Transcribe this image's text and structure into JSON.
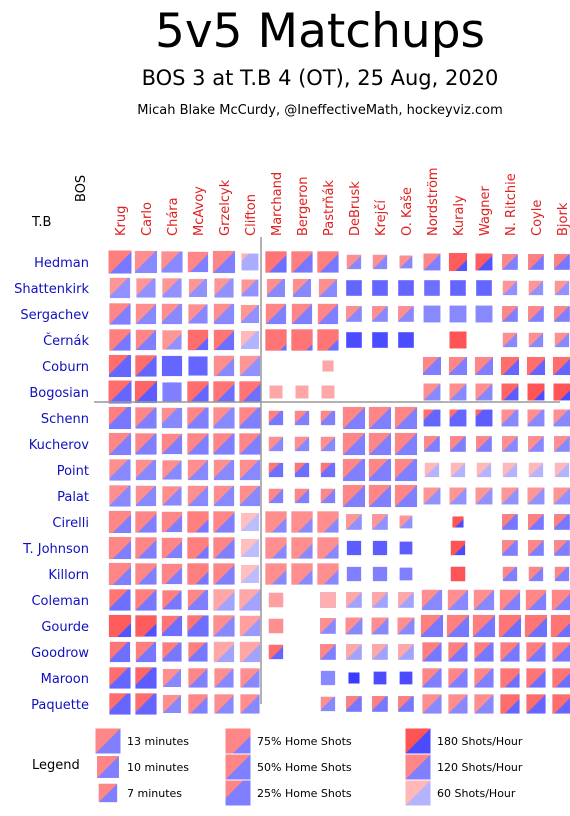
{
  "title": "5v5 Matchups",
  "subtitle": "BOS 3 at T.B 4 (OT), 25 Aug, 2020",
  "credit": "Micah Blake McCurdy, @IneffectiveMath, hockeyviz.com",
  "away_team": "BOS",
  "home_team": "T.B",
  "colors": {
    "home_player": "#1010c0",
    "away_player": "#e02020",
    "home_shots": "#ff4444",
    "away_shots": "#3a3aff",
    "separator": "#999999"
  },
  "chart_data": {
    "type": "heatmap",
    "columns": [
      "Krug",
      "Carlo",
      "Chára",
      "McAvoy",
      "Grzelcyk",
      "Clifton",
      "Marchand",
      "Bergeron",
      "Pastrňák",
      "DeBrusk",
      "Krejčí",
      "O. Kaše",
      "Nordström",
      "Kuraly",
      "Wagner",
      "N. Ritchie",
      "Coyle",
      "Bjork"
    ],
    "rows": [
      "Hedman",
      "Shattenkirk",
      "Sergachev",
      "Černák",
      "Coburn",
      "Bogosian",
      "Schenn",
      "Kucherov",
      "Point",
      "Palat",
      "Cirelli",
      "T. Johnson",
      "Killorn",
      "Coleman",
      "Gourde",
      "Goodrow",
      "Maroon",
      "Paquette"
    ],
    "column_groups": [
      "defense",
      "forwards"
    ],
    "row_groups": [
      "defense",
      "forwards"
    ],
    "minutes": [
      [
        13,
        12,
        11,
        10,
        12,
        7,
        11,
        11,
        11,
        5,
        5,
        4,
        7,
        8,
        7,
        6,
        6,
        6
      ],
      [
        10,
        9,
        9,
        8,
        9,
        7,
        8,
        8,
        8,
        6,
        6,
        6,
        6,
        6,
        6,
        5,
        5,
        5
      ],
      [
        11,
        10,
        10,
        9,
        10,
        8,
        10,
        10,
        10,
        6,
        6,
        6,
        7,
        7,
        7,
        6,
        6,
        6
      ],
      [
        11,
        10,
        9,
        10,
        10,
        8,
        11,
        11,
        11,
        6,
        6,
        6,
        0,
        7,
        0,
        5,
        5,
        5
      ],
      [
        12,
        11,
        10,
        9,
        10,
        10,
        0,
        0,
        3,
        0,
        0,
        0,
        8,
        8,
        8,
        8,
        8,
        8
      ],
      [
        13,
        12,
        9,
        11,
        11,
        11,
        4,
        4,
        4,
        0,
        0,
        0,
        7,
        7,
        7,
        7,
        7,
        7
      ],
      [
        12,
        11,
        10,
        11,
        11,
        11,
        5,
        5,
        5,
        12,
        12,
        12,
        7,
        7,
        7,
        7,
        7,
        7
      ],
      [
        12,
        11,
        10,
        11,
        11,
        11,
        5,
        5,
        5,
        12,
        12,
        12,
        6,
        6,
        6,
        6,
        6,
        6
      ],
      [
        11,
        10,
        9,
        10,
        10,
        10,
        5,
        5,
        5,
        12,
        12,
        12,
        5,
        5,
        5,
        5,
        5,
        5
      ],
      [
        11,
        10,
        9,
        10,
        10,
        10,
        5,
        5,
        5,
        12,
        12,
        12,
        7,
        7,
        7,
        7,
        7,
        7
      ],
      [
        12,
        11,
        10,
        11,
        11,
        8,
        11,
        11,
        11,
        6,
        6,
        4,
        0,
        3,
        0,
        6,
        6,
        6
      ],
      [
        12,
        11,
        10,
        11,
        11,
        8,
        11,
        11,
        11,
        5,
        5,
        4,
        0,
        5,
        0,
        6,
        6,
        6
      ],
      [
        12,
        11,
        10,
        11,
        11,
        8,
        11,
        11,
        11,
        5,
        5,
        4,
        0,
        5,
        0,
        5,
        5,
        5
      ],
      [
        11,
        11,
        9,
        10,
        11,
        11,
        5,
        0,
        6,
        6,
        6,
        6,
        10,
        10,
        10,
        10,
        10,
        10
      ],
      [
        12,
        11,
        10,
        11,
        11,
        10,
        5,
        0,
        6,
        7,
        7,
        7,
        12,
        12,
        12,
        12,
        12,
        12
      ],
      [
        10,
        10,
        9,
        9,
        10,
        10,
        5,
        0,
        6,
        6,
        6,
        6,
        9,
        9,
        9,
        9,
        9,
        9
      ],
      [
        11,
        11,
        8,
        9,
        9,
        9,
        0,
        0,
        5,
        3,
        4,
        4,
        9,
        9,
        9,
        9,
        9,
        9
      ],
      [
        11,
        11,
        8,
        9,
        9,
        9,
        0,
        0,
        5,
        6,
        6,
        6,
        9,
        9,
        9,
        9,
        9,
        9
      ]
    ],
    "home_shot_pct": [
      [
        55,
        45,
        40,
        60,
        50,
        10,
        65,
        55,
        60,
        55,
        50,
        50,
        50,
        80,
        60,
        50,
        55,
        45
      ],
      [
        40,
        40,
        40,
        40,
        40,
        40,
        40,
        40,
        50,
        0,
        0,
        0,
        0,
        0,
        0,
        50,
        50,
        50
      ],
      [
        50,
        50,
        40,
        45,
        40,
        45,
        50,
        50,
        50,
        45,
        45,
        45,
        0,
        0,
        0,
        50,
        50,
        45
      ],
      [
        60,
        50,
        65,
        80,
        55,
        40,
        95,
        95,
        85,
        0,
        0,
        0,
        50,
        100,
        50,
        50,
        50,
        50
      ],
      [
        40,
        50,
        0,
        0,
        60,
        50,
        50,
        50,
        100,
        50,
        50,
        50,
        40,
        45,
        50,
        60,
        60,
        55
      ],
      [
        50,
        50,
        0,
        60,
        60,
        60,
        100,
        100,
        100,
        50,
        50,
        50,
        50,
        50,
        50,
        60,
        80,
        80
      ],
      [
        35,
        45,
        30,
        40,
        40,
        40,
        35,
        40,
        35,
        50,
        50,
        50,
        20,
        15,
        10,
        40,
        40,
        40
      ],
      [
        50,
        45,
        50,
        50,
        45,
        50,
        50,
        50,
        50,
        50,
        50,
        50,
        45,
        45,
        45,
        50,
        50,
        50
      ],
      [
        40,
        40,
        50,
        50,
        40,
        45,
        30,
        30,
        30,
        40,
        40,
        40,
        50,
        50,
        50,
        50,
        50,
        50
      ],
      [
        45,
        45,
        50,
        50,
        45,
        45,
        50,
        50,
        50,
        50,
        50,
        50,
        50,
        50,
        50,
        50,
        50,
        50
      ],
      [
        65,
        60,
        65,
        80,
        55,
        50,
        75,
        75,
        75,
        50,
        50,
        50,
        50,
        70,
        50,
        40,
        50,
        40
      ],
      [
        65,
        60,
        65,
        80,
        55,
        50,
        75,
        75,
        75,
        0,
        0,
        0,
        50,
        70,
        50,
        40,
        50,
        40
      ],
      [
        65,
        60,
        65,
        80,
        55,
        50,
        75,
        75,
        75,
        0,
        0,
        0,
        50,
        100,
        50,
        40,
        50,
        40
      ],
      [
        40,
        50,
        50,
        40,
        60,
        50,
        100,
        50,
        100,
        50,
        50,
        50,
        40,
        50,
        50,
        60,
        60,
        60
      ],
      [
        80,
        80,
        40,
        30,
        50,
        60,
        100,
        50,
        50,
        50,
        50,
        50,
        45,
        50,
        50,
        60,
        60,
        70
      ],
      [
        40,
        45,
        40,
        40,
        60,
        60,
        60,
        50,
        50,
        50,
        50,
        50,
        50,
        45,
        40,
        50,
        50,
        50
      ],
      [
        40,
        35,
        50,
        50,
        50,
        55,
        50,
        50,
        0,
        0,
        0,
        0,
        45,
        45,
        45,
        70,
        60,
        65
      ],
      [
        35,
        40,
        50,
        60,
        55,
        50,
        50,
        50,
        40,
        40,
        40,
        40,
        50,
        50,
        50,
        70,
        50,
        60
      ]
    ],
    "shots_per_hour": [
      [
        130,
        110,
        110,
        120,
        120,
        70,
        140,
        130,
        130,
        110,
        110,
        110,
        120,
        170,
        170,
        120,
        130,
        130
      ],
      [
        100,
        100,
        100,
        100,
        100,
        100,
        110,
        110,
        110,
        150,
        150,
        150,
        140,
        150,
        150,
        100,
        100,
        100
      ],
      [
        120,
        110,
        110,
        110,
        110,
        100,
        120,
        120,
        120,
        110,
        110,
        110,
        110,
        110,
        110,
        120,
        120,
        120
      ],
      [
        130,
        120,
        100,
        150,
        140,
        60,
        140,
        140,
        140,
        180,
        180,
        180,
        0,
        180,
        0,
        110,
        110,
        110
      ],
      [
        150,
        150,
        150,
        150,
        110,
        100,
        0,
        0,
        80,
        0,
        0,
        0,
        120,
        120,
        120,
        150,
        150,
        150
      ],
      [
        150,
        160,
        120,
        150,
        140,
        140,
        80,
        80,
        80,
        0,
        0,
        0,
        110,
        110,
        110,
        160,
        180,
        180
      ],
      [
        130,
        120,
        110,
        120,
        110,
        120,
        130,
        120,
        120,
        120,
        120,
        120,
        150,
        150,
        160,
        110,
        110,
        110
      ],
      [
        120,
        120,
        120,
        120,
        120,
        120,
        110,
        110,
        110,
        120,
        120,
        120,
        120,
        120,
        120,
        110,
        110,
        110
      ],
      [
        110,
        110,
        110,
        110,
        110,
        110,
        140,
        140,
        140,
        120,
        120,
        120,
        60,
        60,
        60,
        60,
        60,
        60
      ],
      [
        110,
        110,
        110,
        110,
        110,
        110,
        120,
        120,
        120,
        120,
        120,
        120,
        100,
        100,
        100,
        100,
        100,
        100
      ],
      [
        120,
        120,
        120,
        130,
        120,
        50,
        110,
        110,
        110,
        100,
        100,
        100,
        0,
        180,
        0,
        130,
        130,
        130
      ],
      [
        120,
        120,
        120,
        130,
        120,
        50,
        110,
        110,
        110,
        160,
        160,
        160,
        0,
        180,
        0,
        120,
        120,
        120
      ],
      [
        120,
        120,
        120,
        130,
        120,
        50,
        110,
        110,
        110,
        120,
        120,
        120,
        0,
        180,
        0,
        120,
        120,
        120
      ],
      [
        140,
        130,
        130,
        120,
        80,
        80,
        90,
        0,
        70,
        80,
        80,
        80,
        110,
        110,
        110,
        120,
        120,
        120
      ],
      [
        170,
        170,
        140,
        140,
        110,
        90,
        110,
        0,
        110,
        110,
        110,
        110,
        130,
        130,
        130,
        140,
        140,
        140
      ],
      [
        140,
        130,
        130,
        130,
        80,
        80,
        150,
        0,
        120,
        80,
        80,
        80,
        130,
        130,
        130,
        130,
        130,
        130
      ],
      [
        150,
        160,
        110,
        120,
        110,
        110,
        0,
        0,
        110,
        200,
        180,
        180,
        120,
        120,
        120,
        140,
        140,
        140
      ],
      [
        150,
        150,
        110,
        120,
        110,
        110,
        0,
        0,
        110,
        130,
        130,
        130,
        110,
        110,
        110,
        150,
        150,
        150
      ]
    ]
  },
  "legend": {
    "title": "Legend",
    "size_items": [
      "13 minutes",
      "10 minutes",
      "7 minutes"
    ],
    "share_items": [
      "75% Home Shots",
      "50% Home Shots",
      "25% Home Shots"
    ],
    "rate_items": [
      "180 Shots/Hour",
      "120 Shots/Hour",
      "60 Shots/Hour"
    ]
  }
}
